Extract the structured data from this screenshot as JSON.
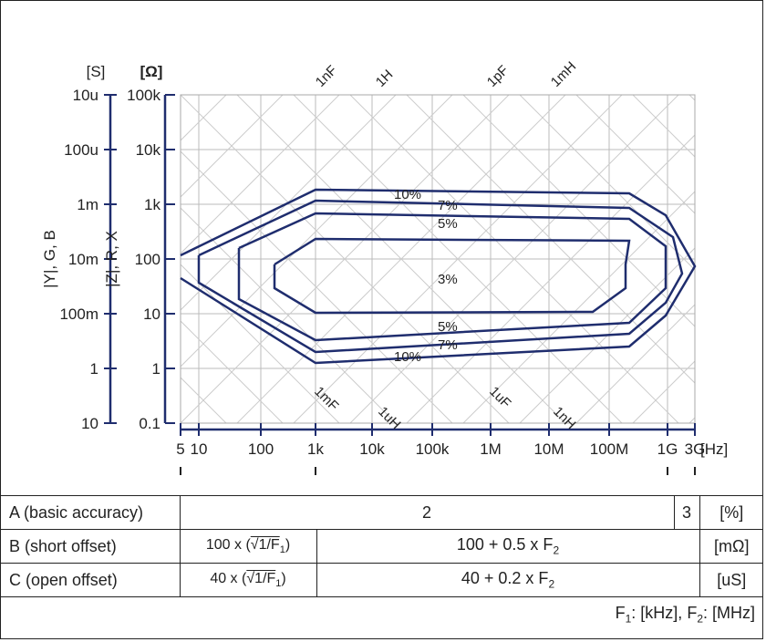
{
  "chart": {
    "y_outer_unit": "[S]",
    "y_inner_unit": "[Ω]",
    "y_outer_title": "|Y|, G, B",
    "y_inner_title": "|Z|, R, X",
    "y_outer_ticks": [
      "10u",
      "100u",
      "1m",
      "10m",
      "100m",
      "1",
      "10"
    ],
    "y_inner_ticks": [
      "100k",
      "10k",
      "1k",
      "100",
      "10",
      "1",
      "0.1"
    ],
    "x_ticks": [
      "5",
      "10",
      "100",
      "1k",
      "10k",
      "100k",
      "1M",
      "10M",
      "100M",
      "1G",
      "3G"
    ],
    "x_unit": "[Hz]",
    "top_labels": [
      "1nF",
      "1H",
      "1pF",
      "1mH"
    ],
    "bottom_labels": [
      "1mF",
      "1uH",
      "1uF",
      "1nH"
    ],
    "contour_labels": {
      "c10_top": "10%",
      "c7_top": "7%",
      "c5_top": "5%",
      "c3": "3%",
      "c5_bot": "5%",
      "c7_bot": "7%",
      "c10_bot": "10%"
    }
  },
  "table": {
    "row_a": {
      "label": "A (basic accuracy)",
      "val1": "2",
      "val2": "3",
      "unit": "[%]"
    },
    "row_b": {
      "label": "B (short offset)",
      "formula1_prefix": "100 x (",
      "formula1_root": "√1/F",
      "formula1_sub": "1",
      "formula1_suffix": ")",
      "formula2_main": "100 + 0.5 x F",
      "formula2_sub": "2",
      "unit": "[mΩ]"
    },
    "row_c": {
      "label": "C (open offset)",
      "formula1_prefix": "40 x (",
      "formula1_root": "√1/F",
      "formula1_sub": "1",
      "formula1_suffix": ")",
      "formula2_main": "40 + 0.2 x F",
      "formula2_sub": "2",
      "unit": "[uS]"
    }
  },
  "note": {
    "f1": "F",
    "f1_sub": "1",
    "f1_rest": ": [kHz], ",
    "f2": "F",
    "f2_sub": "2",
    "f2_rest": ": [MHz]"
  }
}
